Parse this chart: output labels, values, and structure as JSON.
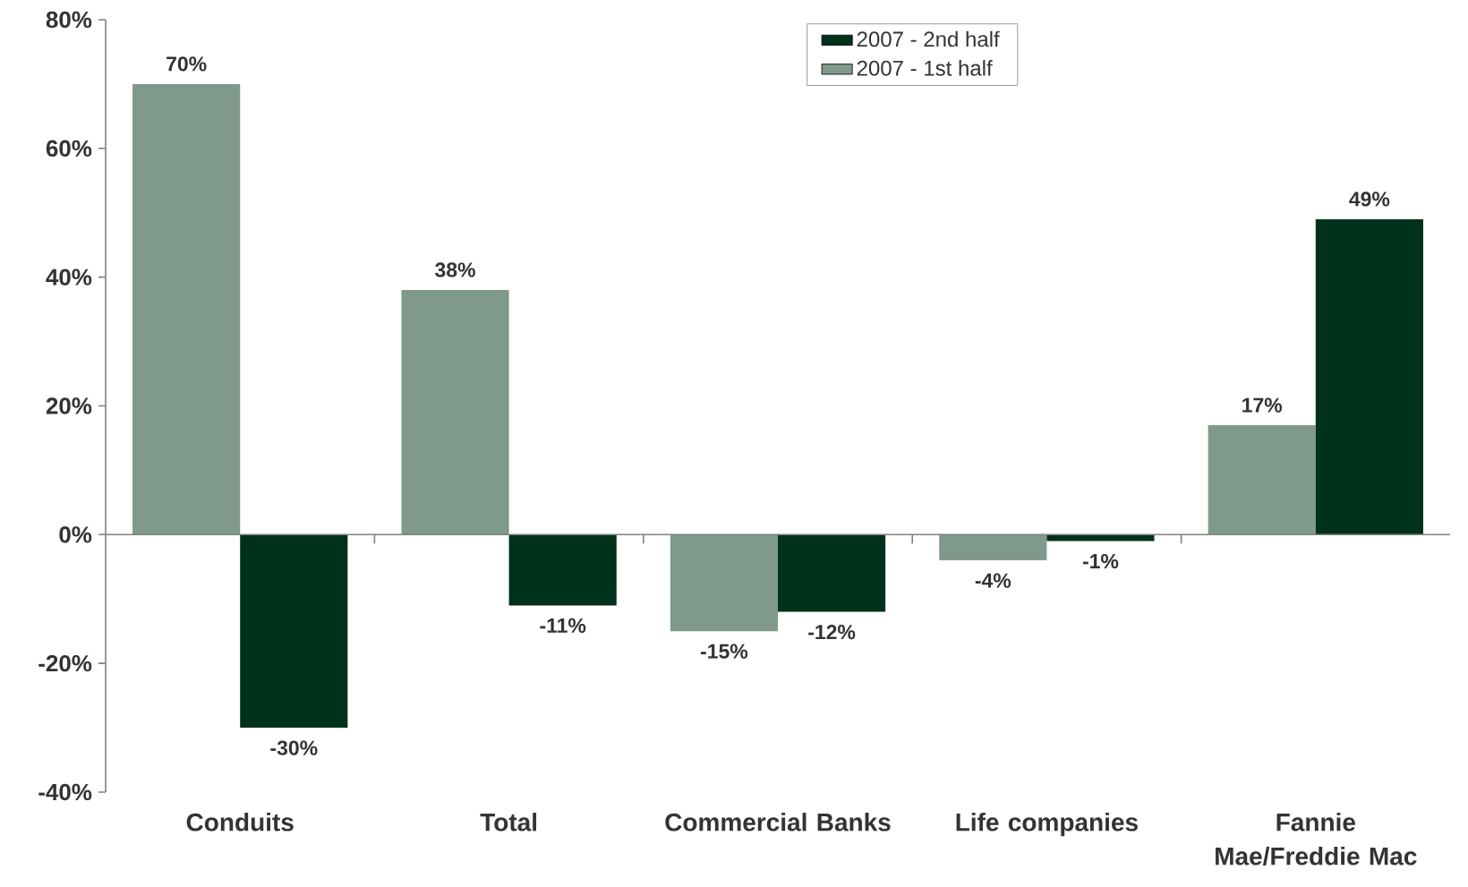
{
  "chart_data": {
    "type": "bar",
    "categories": [
      "Conduits",
      "Total",
      "Commercial Banks",
      "Life companies",
      "Fannie Mae/Freddie Mac"
    ],
    "series": [
      {
        "name": "2007 - 1st half",
        "color": "#7f9a8b",
        "values": [
          70,
          38,
          -15,
          -4,
          17
        ],
        "value_labels": [
          "70%",
          "38%",
          "-15%",
          "-4%",
          "17%"
        ]
      },
      {
        "name": "2007 - 2nd half",
        "color": "#00311b",
        "values": [
          -30,
          -11,
          -12,
          -1,
          49
        ],
        "value_labels": [
          "-30%",
          "-11%",
          "-12%",
          "-1%",
          "49%"
        ]
      }
    ],
    "ylim": [
      -40,
      80
    ],
    "yticks": [
      {
        "value": -40,
        "label": "-40%"
      },
      {
        "value": -20,
        "label": "-20%"
      },
      {
        "value": 0,
        "label": "0%"
      },
      {
        "value": 20,
        "label": "20%"
      },
      {
        "value": 40,
        "label": "40%"
      },
      {
        "value": 60,
        "label": "60%"
      },
      {
        "value": 80,
        "label": "80%"
      }
    ],
    "legend": "top"
  }
}
